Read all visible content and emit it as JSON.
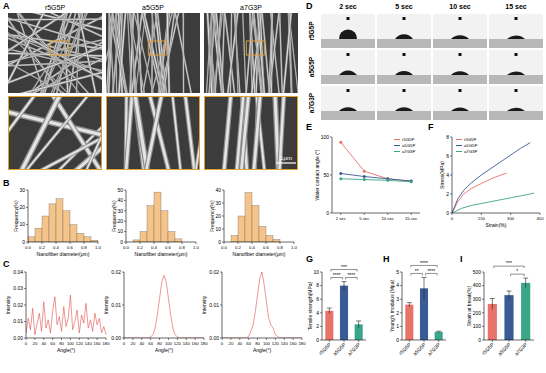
{
  "panel_labels": [
    "A",
    "B",
    "C",
    "D",
    "E",
    "F",
    "G",
    "H",
    "I"
  ],
  "sem": {
    "samples": [
      "r5G5P",
      "a5G5P",
      "a7G3P"
    ],
    "scale_bar": "1μm"
  },
  "contact_angle_images": {
    "times": [
      "2 sec",
      "5 sec",
      "10 sec",
      "15 sec"
    ],
    "samples": [
      "r5G5P",
      "a5G5P",
      "a7G3P"
    ]
  },
  "chart_data": [
    {
      "type": "histogram",
      "x_label": "Nanofiber diameter(μm)",
      "y_label": "Frequency(%)",
      "color": "#f5c48a",
      "bins": [
        0,
        0.1,
        0.2,
        0.3,
        0.4,
        0.5,
        0.6,
        0.7,
        0.8,
        0.9,
        1
      ],
      "values": [
        3,
        8,
        15,
        22,
        25,
        18,
        10,
        5,
        3,
        1
      ],
      "xlim": [
        0,
        1
      ],
      "xticks": [
        {
          "value": 0,
          "label": "0.0"
        },
        0.2,
        0.4,
        0.6,
        0.8,
        {
          "value": 1,
          "label": "1.0"
        }
      ],
      "ylim": [
        0,
        30
      ],
      "yticks": [
        0,
        10,
        20,
        30
      ]
    },
    {
      "type": "histogram",
      "x_label": "Nanofiber diameter(μm)",
      "y_label": "Frequency(%)",
      "color": "#f5c48a",
      "bins": [
        0,
        0.1,
        0.2,
        0.3,
        0.4,
        0.5,
        0.6,
        0.7,
        0.8,
        0.9,
        1
      ],
      "values": [
        0,
        2,
        10,
        35,
        48,
        30,
        10,
        3,
        0,
        0
      ],
      "xlim": [
        0,
        1
      ],
      "xticks": [
        {
          "value": 0,
          "label": "0.0"
        },
        0.2,
        0.4,
        0.6,
        0.8,
        {
          "value": 1,
          "label": "1.0"
        }
      ],
      "ylim": [
        0,
        50
      ],
      "yticks": [
        0,
        10,
        20,
        30,
        40,
        50
      ]
    },
    {
      "type": "histogram",
      "x_label": "Nanofiber diameter(μm)",
      "y_label": "Frequency(%)",
      "color": "#f5c48a",
      "bins": [
        0,
        0.1,
        0.2,
        0.3,
        0.4,
        0.5,
        0.6,
        0.7,
        0.8,
        0.9,
        1
      ],
      "values": [
        0,
        5,
        20,
        38,
        28,
        12,
        5,
        2,
        0,
        0
      ],
      "xlim": [
        0,
        1
      ],
      "xticks": [
        {
          "value": 0,
          "label": "0.0"
        },
        0.2,
        0.4,
        0.6,
        0.8,
        {
          "value": 1,
          "label": "1.0"
        }
      ],
      "ylim": [
        0,
        40
      ],
      "yticks": [
        0,
        10,
        20,
        30,
        40
      ]
    },
    {
      "type": "line",
      "x_label": "Angle(°)",
      "y_label": "Intensity",
      "color": "#e05050",
      "x": [
        0,
        5,
        10,
        15,
        20,
        25,
        30,
        35,
        40,
        45,
        50,
        55,
        60,
        65,
        70,
        75,
        80,
        85,
        90,
        95,
        100,
        105,
        110,
        115,
        120,
        125,
        130,
        135,
        140,
        145,
        150,
        155,
        160,
        165,
        170,
        175,
        180
      ],
      "values": [
        0.003,
        0.012,
        0.005,
        0.018,
        0.002,
        0.009,
        0.015,
        0.004,
        0.022,
        0.006,
        0.011,
        0.003,
        0.016,
        0.025,
        0.008,
        0.013,
        0.004,
        0.019,
        0.007,
        0.012,
        0.026,
        0.005,
        0.01,
        0.017,
        0.003,
        0.014,
        0.009,
        0.021,
        0.006,
        0.011,
        0.004,
        0.015,
        0.008,
        0.012,
        0.003,
        0.007,
        0.002
      ],
      "xlim": [
        0,
        180
      ],
      "xticks": [
        0,
        20,
        40,
        60,
        80,
        100,
        120,
        140,
        160,
        180
      ],
      "ylim": [
        0,
        0.04
      ],
      "yticks": [
        {
          "value": 0,
          "label": "0.00"
        },
        0.01,
        0.02,
        0.03,
        0.04
      ]
    },
    {
      "type": "line",
      "x_label": "Angle(°)",
      "y_label": "Intensity",
      "color": "#e05050",
      "x": [
        0,
        5,
        10,
        15,
        20,
        25,
        30,
        35,
        40,
        45,
        50,
        55,
        60,
        65,
        70,
        75,
        80,
        85,
        90,
        95,
        100,
        105,
        110,
        115,
        120,
        125,
        130,
        135,
        140,
        145,
        150,
        155,
        160,
        165,
        170,
        175,
        180
      ],
      "values": [
        0,
        0,
        0,
        0,
        0,
        0,
        0,
        0,
        0,
        0,
        0,
        0,
        0.0003,
        0.001,
        0.003,
        0.007,
        0.012,
        0.017,
        0.019,
        0.017,
        0.012,
        0.007,
        0.003,
        0.001,
        0.0003,
        0,
        0,
        0,
        0,
        0,
        0,
        0,
        0,
        0,
        0,
        0,
        0
      ],
      "xlim": [
        0,
        180
      ],
      "xticks": [
        0,
        20,
        40,
        60,
        80,
        100,
        120,
        140,
        160,
        180
      ],
      "ylim": [
        0,
        0.02
      ],
      "yticks": [
        {
          "value": 0,
          "label": "0.00"
        },
        0.01,
        0.02
      ]
    },
    {
      "type": "line",
      "x_label": "Angle(°)",
      "y_label": "Intensity",
      "color": "#e05050",
      "x": [
        0,
        5,
        10,
        15,
        20,
        25,
        30,
        35,
        40,
        45,
        50,
        55,
        60,
        65,
        70,
        75,
        80,
        85,
        90,
        95,
        100,
        105,
        110,
        115,
        120,
        125,
        130,
        135,
        140,
        145,
        150,
        155,
        160,
        165,
        170,
        175,
        180
      ],
      "values": [
        0,
        0,
        0,
        0,
        0,
        0,
        0,
        0,
        0,
        0,
        0,
        0,
        0.0005,
        0.002,
        0.004,
        0.008,
        0.013,
        0.018,
        0.02,
        0.016,
        0.011,
        0.006,
        0.004,
        0.003,
        0.001,
        0.0005,
        0,
        0,
        0,
        0,
        0,
        0,
        0,
        0,
        0,
        0,
        0
      ],
      "xlim": [
        0,
        180
      ],
      "xticks": [
        0,
        20,
        40,
        60,
        80,
        100,
        120,
        140,
        160,
        180
      ],
      "ylim": [
        0,
        0.02
      ],
      "yticks": [
        {
          "value": 0,
          "label": "0.00"
        },
        0.01,
        0.02
      ]
    },
    {
      "type": "line",
      "y_label": "Water contact angle (°)",
      "categories": [
        "2 sec",
        "5 sec",
        "10 sec",
        "15 sec"
      ],
      "legend": "top-right",
      "ylim": [
        0,
        100
      ],
      "yticks": [
        0,
        50,
        100
      ],
      "series": [
        {
          "name": "r5G5P",
          "color": "#e8736a",
          "marker": "circle",
          "values": [
            93,
            55,
            45,
            42
          ]
        },
        {
          "name": "a5G5P",
          "color": "#3b5b94",
          "marker": "circle",
          "values": [
            52,
            48,
            45,
            42
          ]
        },
        {
          "name": "a7G3P",
          "color": "#3ba58a",
          "marker": "circle",
          "values": [
            45,
            44,
            43,
            41
          ]
        }
      ]
    },
    {
      "type": "line",
      "x_label": "Strain(%)",
      "y_label": "Stress(MPa)",
      "legend": "top-left",
      "xlim": [
        0,
        450
      ],
      "xticks": [
        0,
        150,
        300,
        450
      ],
      "ylim": [
        0,
        8
      ],
      "yticks": [
        0,
        2,
        4,
        6,
        8
      ],
      "series": [
        {
          "name": "r5G5P",
          "color": "#e8736a",
          "x": [
            0,
            30,
            60,
            100,
            150,
            200,
            250,
            280
          ],
          "values": [
            0,
            1.2,
            2,
            2.6,
            3.1,
            3.6,
            4,
            4.2
          ]
        },
        {
          "name": "a5G5P",
          "color": "#3b5b94",
          "x": [
            0,
            30,
            60,
            100,
            150,
            200,
            250,
            300,
            350,
            400
          ],
          "values": [
            0,
            1.5,
            2.4,
            3.2,
            4,
            4.7,
            5.4,
            6.1,
            6.8,
            7.4
          ]
        },
        {
          "name": "a7G3P",
          "color": "#3ba58a",
          "x": [
            0,
            50,
            100,
            150,
            200,
            250,
            300,
            350,
            400,
            420
          ],
          "values": [
            0,
            0.5,
            0.8,
            1,
            1.2,
            1.4,
            1.6,
            1.8,
            2,
            2.1
          ]
        }
      ]
    },
    {
      "type": "bar",
      "y_label": "Tensile strength(MPa)",
      "categories": [
        "r5G5P",
        "a5G5P",
        "a7G3P"
      ],
      "values": [
        4.3,
        8,
        2.3
      ],
      "errors": [
        0.4,
        0.6,
        0.5
      ],
      "colors": [
        "#e8736a",
        "#3b5b94",
        "#3ba58a"
      ],
      "ylim": [
        0,
        10
      ],
      "yticks": [
        0,
        2,
        4,
        6,
        8,
        10
      ],
      "significance": [
        {
          "pair": [
            0,
            1
          ],
          "label": "****"
        },
        {
          "pair": [
            1,
            2
          ],
          "label": "****"
        },
        {
          "pair": [
            0,
            2
          ],
          "label": "***"
        }
      ]
    },
    {
      "type": "bar",
      "y_label": "Young's modulus (Mpa)",
      "categories": [
        "r5G5P",
        "a5G5P",
        "a7G3P"
      ],
      "values": [
        2.6,
        3.8,
        0.6
      ],
      "errors": [
        0.15,
        0.8,
        0.05
      ],
      "colors": [
        "#e8736a",
        "#3b5b94",
        "#3ba58a"
      ],
      "ylim": [
        0,
        5
      ],
      "yticks": [
        0,
        1,
        2,
        3,
        4,
        5
      ],
      "significance": [
        {
          "pair": [
            0,
            1
          ],
          "label": "**"
        },
        {
          "pair": [
            1,
            2
          ],
          "label": "****"
        },
        {
          "pair": [
            0,
            2
          ],
          "label": "****"
        }
      ]
    },
    {
      "type": "bar",
      "y_label": "Strain at break(%)",
      "categories": [
        "r5G5P",
        "a5G5P",
        "a7G3P"
      ],
      "values": [
        265,
        330,
        420
      ],
      "errors": [
        40,
        30,
        35
      ],
      "colors": [
        "#e8736a",
        "#3b5b94",
        "#3ba58a"
      ],
      "ylim": [
        0,
        500
      ],
      "yticks": [
        0,
        100,
        200,
        300,
        400,
        500
      ],
      "significance": [
        {
          "pair": [
            1,
            2
          ],
          "label": "*"
        },
        {
          "pair": [
            0,
            2
          ],
          "label": "***"
        }
      ]
    }
  ]
}
